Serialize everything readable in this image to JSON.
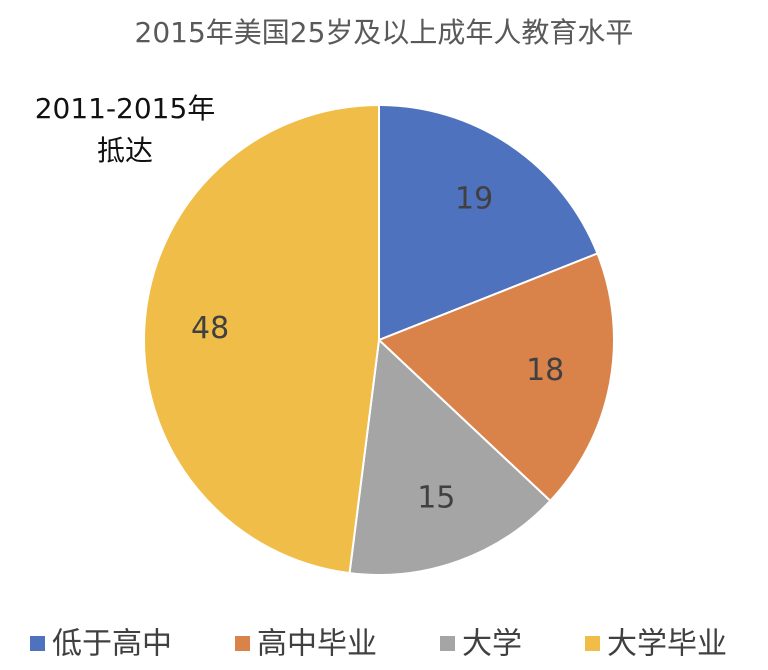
{
  "chart_data": {
    "type": "pie",
    "title": "2015年美国25岁及以上成年人教育水平",
    "annotation": [
      "2011-2015年",
      "抵达"
    ],
    "categories": [
      "低于高中",
      "高中毕业",
      "大学",
      "大学毕业"
    ],
    "values": [
      19,
      18,
      15,
      48
    ],
    "colors": [
      "#4f72be",
      "#d9834b",
      "#a5a5a5",
      "#f0be48"
    ],
    "legend": "bottom"
  }
}
